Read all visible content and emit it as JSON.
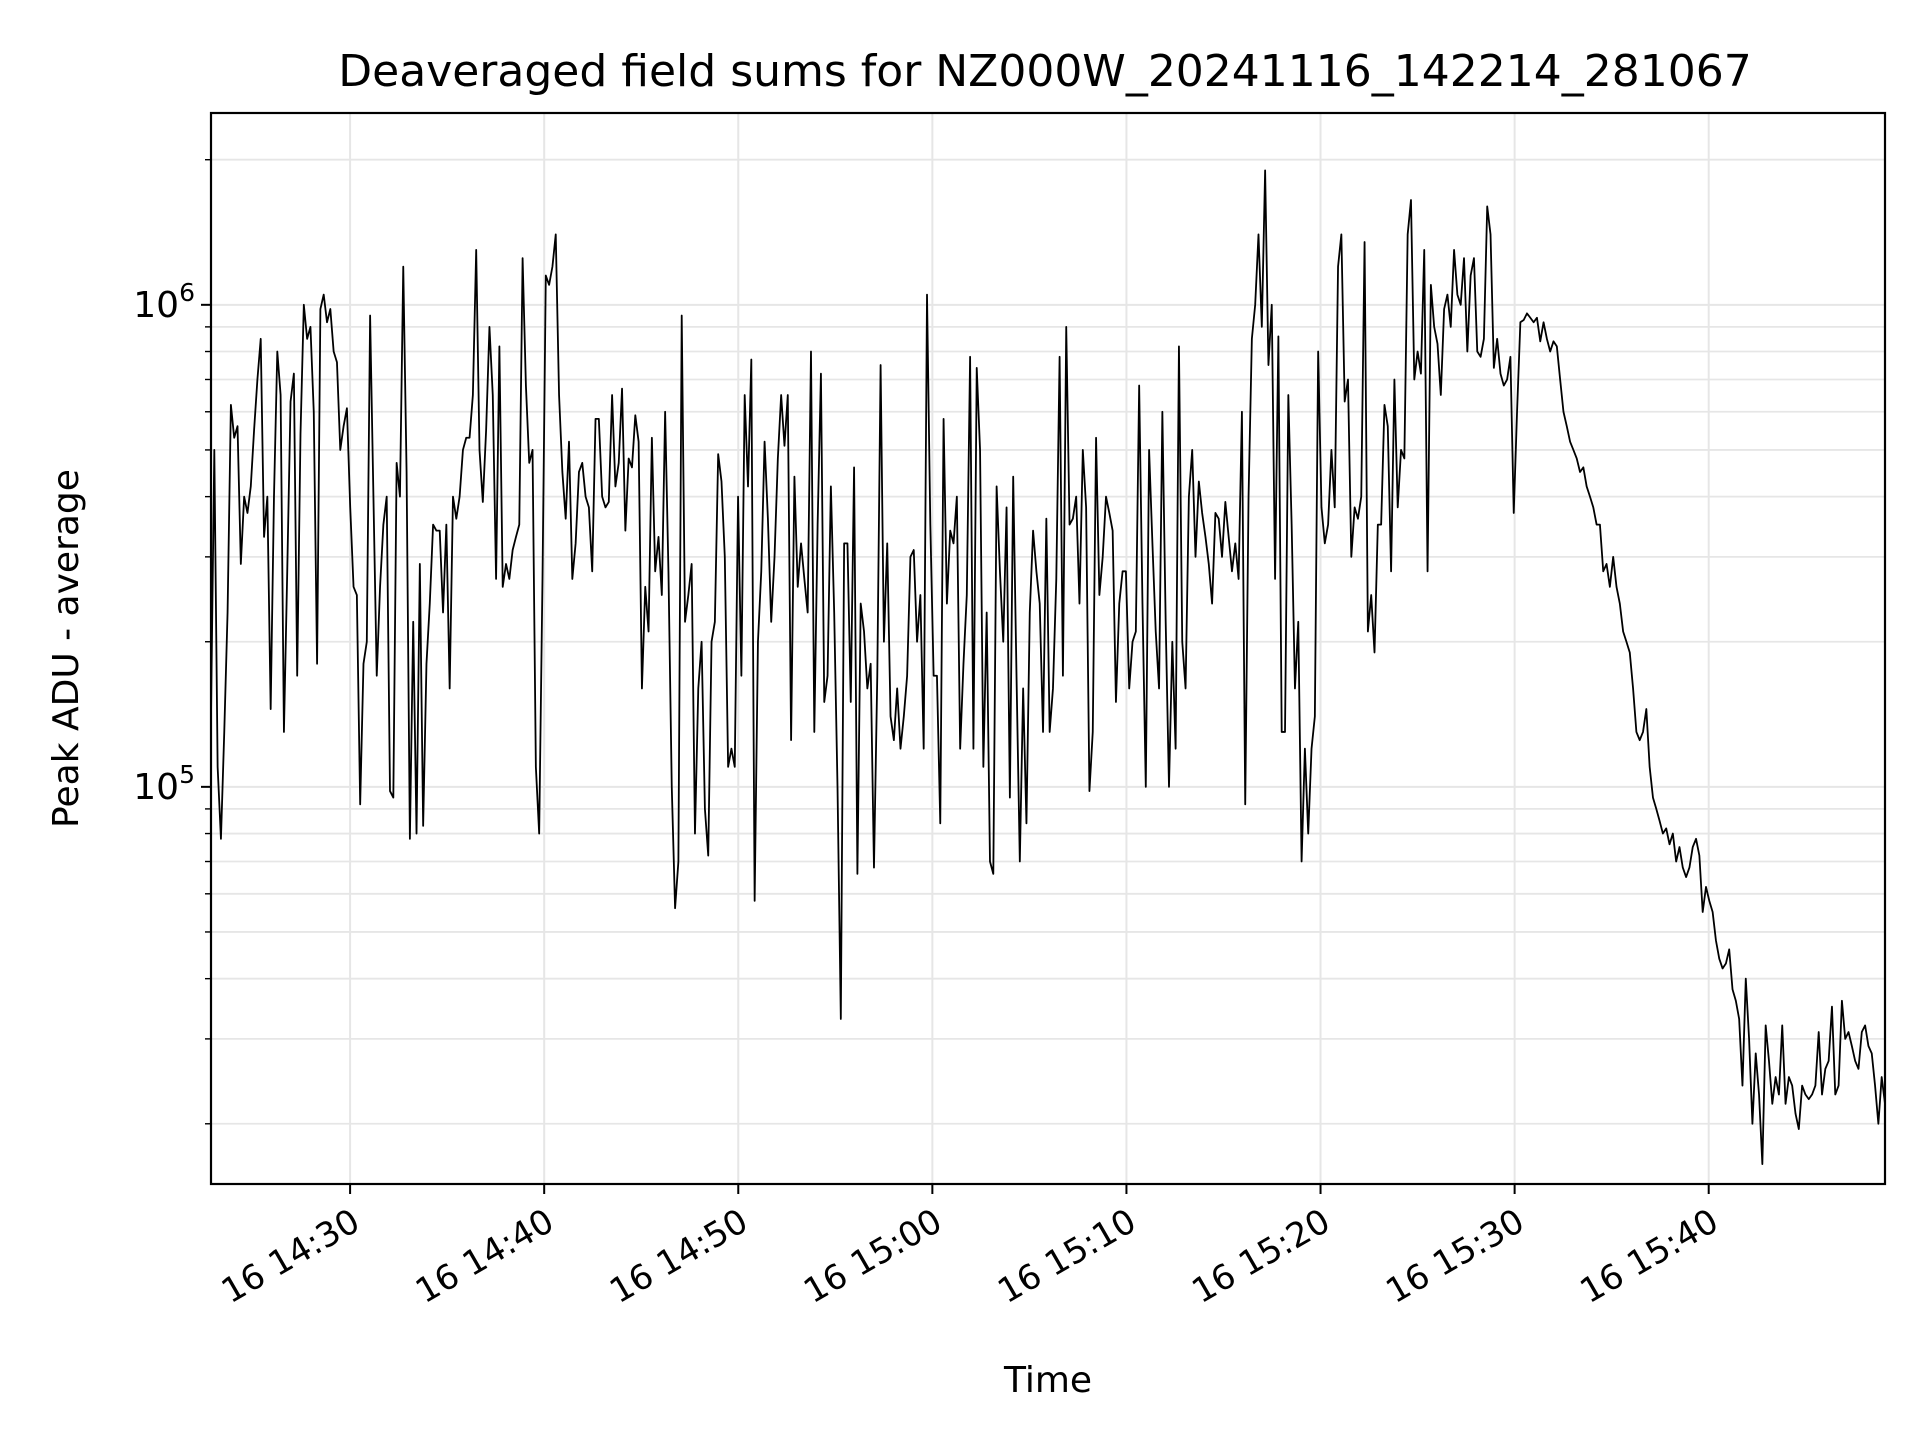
{
  "chart_data": {
    "type": "line",
    "title": "Deaveraged field sums for NZ000W_20241116_142214_281067",
    "xlabel": "Time",
    "ylabel": "Peak ADU - average",
    "y_scale": "log",
    "ylim": [
      15000,
      2500000
    ],
    "xlim": [
      "2024-11-16 14:22:50",
      "2024-11-16 15:49:05"
    ],
    "grid": true,
    "line_color": "#000000",
    "grid_color": "#e6e6e6",
    "x_ticks": [
      {
        "value": "2024-11-16 14:30",
        "label": "16 14:30"
      },
      {
        "value": "2024-11-16 14:40",
        "label": "16 14:40"
      },
      {
        "value": "2024-11-16 14:50",
        "label": "16 14:50"
      },
      {
        "value": "2024-11-16 15:00",
        "label": "16 15:00"
      },
      {
        "value": "2024-11-16 15:10",
        "label": "16 15:10"
      },
      {
        "value": "2024-11-16 15:20",
        "label": "16 15:20"
      },
      {
        "value": "2024-11-16 15:30",
        "label": "16 15:30"
      },
      {
        "value": "2024-11-16 15:40",
        "label": "16 15:40"
      }
    ],
    "y_ticks": [
      {
        "value": 100000,
        "base": "10",
        "exp": "5"
      },
      {
        "value": 1000000,
        "base": "10",
        "exp": "6"
      }
    ],
    "series": [
      {
        "x_start": "2024-11-16 14:22:50",
        "x_end": "2024-11-16 15:49:05",
        "values": [
          140000,
          500000,
          110000,
          78000,
          130000,
          230000,
          620000,
          530000,
          560000,
          290000,
          400000,
          370000,
          420000,
          550000,
          700000,
          850000,
          330000,
          400000,
          145000,
          400000,
          800000,
          650000,
          130000,
          280000,
          630000,
          720000,
          170000,
          540000,
          1000000,
          850000,
          900000,
          600000,
          180000,
          980000,
          1050000,
          920000,
          980000,
          800000,
          760000,
          500000,
          560000,
          610000,
          380000,
          260000,
          250000,
          92000,
          180000,
          200000,
          950000,
          400000,
          170000,
          260000,
          350000,
          400000,
          98000,
          95000,
          470000,
          400000,
          1200000,
          450000,
          78000,
          220000,
          80000,
          290000,
          83000,
          180000,
          240000,
          350000,
          340000,
          340000,
          230000,
          350000,
          160000,
          400000,
          360000,
          400000,
          500000,
          530000,
          530000,
          650000,
          1300000,
          500000,
          390000,
          550000,
          900000,
          650000,
          270000,
          820000,
          260000,
          290000,
          270000,
          310000,
          330000,
          350000,
          1250000,
          680000,
          470000,
          500000,
          110000,
          80000,
          270000,
          1150000,
          1100000,
          1200000,
          1400000,
          650000,
          450000,
          360000,
          520000,
          270000,
          320000,
          450000,
          470000,
          400000,
          380000,
          280000,
          580000,
          580000,
          400000,
          380000,
          390000,
          650000,
          420000,
          470000,
          670000,
          340000,
          480000,
          460000,
          590000,
          520000,
          160000,
          260000,
          210000,
          530000,
          280000,
          330000,
          250000,
          600000,
          280000,
          100000,
          56000,
          70000,
          950000,
          220000,
          250000,
          290000,
          80000,
          160000,
          200000,
          90000,
          72000,
          200000,
          220000,
          490000,
          430000,
          300000,
          110000,
          120000,
          110000,
          400000,
          170000,
          650000,
          420000,
          770000,
          58000,
          200000,
          280000,
          520000,
          360000,
          220000,
          300000,
          480000,
          650000,
          510000,
          650000,
          125000,
          440000,
          260000,
          320000,
          270000,
          230000,
          800000,
          130000,
          350000,
          720000,
          150000,
          170000,
          420000,
          230000,
          100000,
          33000,
          320000,
          320000,
          150000,
          460000,
          66000,
          240000,
          210000,
          160000,
          180000,
          68000,
          170000,
          750000,
          200000,
          320000,
          140000,
          125000,
          160000,
          120000,
          140000,
          170000,
          300000,
          310000,
          200000,
          250000,
          120000,
          1050000,
          350000,
          170000,
          170000,
          84000,
          580000,
          240000,
          340000,
          320000,
          400000,
          120000,
          180000,
          250000,
          780000,
          120000,
          740000,
          500000,
          110000,
          230000,
          70000,
          66000,
          420000,
          280000,
          200000,
          380000,
          95000,
          440000,
          170000,
          70000,
          160000,
          84000,
          230000,
          340000,
          280000,
          240000,
          130000,
          360000,
          130000,
          160000,
          270000,
          780000,
          170000,
          900000,
          350000,
          360000,
          400000,
          240000,
          500000,
          380000,
          98000,
          130000,
          530000,
          250000,
          300000,
          400000,
          370000,
          340000,
          150000,
          240000,
          280000,
          280000,
          160000,
          200000,
          210000,
          680000,
          240000,
          100000,
          500000,
          320000,
          210000,
          160000,
          600000,
          220000,
          100000,
          200000,
          120000,
          820000,
          200000,
          160000,
          400000,
          500000,
          300000,
          430000,
          370000,
          330000,
          290000,
          240000,
          370000,
          360000,
          300000,
          390000,
          330000,
          280000,
          320000,
          270000,
          600000,
          92000,
          400000,
          850000,
          1000000,
          1400000,
          900000,
          1900000,
          750000,
          1000000,
          270000,
          860000,
          130000,
          130000,
          650000,
          350000,
          160000,
          220000,
          70000,
          120000,
          80000,
          120000,
          140000,
          800000,
          380000,
          320000,
          350000,
          500000,
          380000,
          1200000,
          1400000,
          630000,
          700000,
          300000,
          380000,
          360000,
          400000,
          1350000,
          210000,
          250000,
          190000,
          350000,
          350000,
          620000,
          560000,
          280000,
          700000,
          380000,
          500000,
          480000,
          1400000,
          1650000,
          700000,
          800000,
          720000,
          1300000,
          280000,
          1100000,
          900000,
          830000,
          650000,
          980000,
          1050000,
          900000,
          1300000,
          1050000,
          1000000,
          1250000,
          800000,
          1150000,
          1250000,
          800000,
          780000,
          850000,
          1600000,
          1400000,
          740000,
          850000,
          720000,
          680000,
          700000,
          780000,
          370000,
          600000,
          920000,
          930000,
          960000,
          940000,
          920000,
          940000,
          840000,
          920000,
          850000,
          800000,
          840000,
          820000,
          700000,
          600000,
          560000,
          520000,
          500000,
          480000,
          450000,
          460000,
          420000,
          400000,
          380000,
          350000,
          350000,
          280000,
          290000,
          260000,
          300000,
          260000,
          240000,
          210000,
          200000,
          190000,
          160000,
          130000,
          125000,
          130000,
          145000,
          110000,
          95000,
          90000,
          85000,
          80000,
          82000,
          76000,
          80000,
          70000,
          75000,
          68000,
          65000,
          68000,
          75000,
          78000,
          72000,
          55000,
          62000,
          58000,
          55000,
          48000,
          44000,
          42000,
          43000,
          46000,
          38000,
          36000,
          33000,
          24000,
          40000,
          30000,
          20000,
          28000,
          23000,
          16500,
          32000,
          27000,
          22000,
          25000,
          23000,
          32000,
          22000,
          25000,
          24000,
          21000,
          19500,
          24000,
          23000,
          22500,
          23000,
          24000,
          31000,
          23000,
          26000,
          27000,
          35000,
          23000,
          24000,
          36000,
          30000,
          31000,
          29000,
          27000,
          26000,
          31000,
          32000,
          29000,
          28000,
          24000,
          20000,
          25000,
          22000
        ]
      }
    ]
  }
}
